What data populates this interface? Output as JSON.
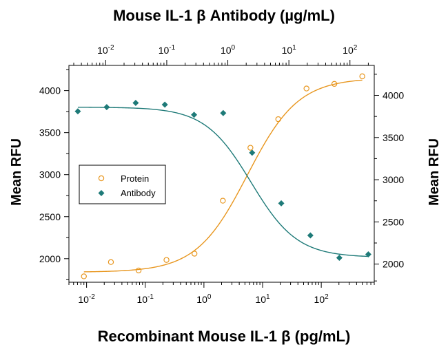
{
  "chart_data": {
    "type": "scatter",
    "title_top": "Mouse IL-1 β Antibody (µg/mL)",
    "xlabel": "Recombinant Mouse IL-1 β (pg/mL)",
    "ylabel_left": "Mean RFU",
    "ylabel_right": "Mean RFU",
    "x_bottom": {
      "scale": "log",
      "range": [
        0.005,
        800
      ],
      "ticks": [
        {
          "value": 0.01,
          "base": "10",
          "exp": "-2"
        },
        {
          "value": 0.1,
          "base": "10",
          "exp": "-1"
        },
        {
          "value": 1,
          "base": "10",
          "exp": "0"
        },
        {
          "value": 10,
          "base": "10",
          "exp": "1"
        },
        {
          "value": 100,
          "base": "10",
          "exp": "2"
        }
      ]
    },
    "x_top": {
      "scale": "log",
      "range": [
        0.0025,
        250
      ],
      "ticks": [
        {
          "value": 0.01,
          "base": "10",
          "exp": "-2"
        },
        {
          "value": 0.1,
          "base": "10",
          "exp": "-1"
        },
        {
          "value": 1,
          "base": "10",
          "exp": "0"
        },
        {
          "value": 10,
          "base": "10",
          "exp": "1"
        },
        {
          "value": 100,
          "base": "10",
          "exp": "2"
        }
      ]
    },
    "y_left": {
      "range": [
        1720,
        4300
      ],
      "ticks": [
        2000,
        2500,
        3000,
        3500,
        4000
      ]
    },
    "y_right": {
      "range": [
        1785,
        4355
      ],
      "ticks": [
        2000,
        2500,
        3000,
        3500,
        4000
      ]
    },
    "legend_position": "middle-left",
    "series": [
      {
        "name": "Protein",
        "axis": "bottom-left",
        "marker": "open-circle",
        "color": "#E8961E",
        "points": [
          {
            "x": 0.009,
            "y": 1790
          },
          {
            "x": 0.026,
            "y": 1960
          },
          {
            "x": 0.077,
            "y": 1860
          },
          {
            "x": 0.23,
            "y": 1985
          },
          {
            "x": 0.69,
            "y": 2060
          },
          {
            "x": 2.1,
            "y": 2690
          },
          {
            "x": 6.2,
            "y": 3320
          },
          {
            "x": 18.5,
            "y": 3660
          },
          {
            "x": 56,
            "y": 4025
          },
          {
            "x": 167,
            "y": 4080
          },
          {
            "x": 500,
            "y": 4170
          }
        ],
        "fit": {
          "bottom": 1840,
          "top": 4150,
          "ec50": 5.5,
          "hill": 1.0
        }
      },
      {
        "name": "Antibody",
        "axis": "top-right",
        "marker": "filled-diamond",
        "color": "#1E7A78",
        "points": [
          {
            "x": 0.0035,
            "y": 3810
          },
          {
            "x": 0.0104,
            "y": 3860
          },
          {
            "x": 0.031,
            "y": 3910
          },
          {
            "x": 0.093,
            "y": 3890
          },
          {
            "x": 0.28,
            "y": 3770
          },
          {
            "x": 0.84,
            "y": 3790
          },
          {
            "x": 2.5,
            "y": 3320
          },
          {
            "x": 7.5,
            "y": 2720
          },
          {
            "x": 22.5,
            "y": 2340
          },
          {
            "x": 67,
            "y": 2075
          },
          {
            "x": 200,
            "y": 2115
          }
        ],
        "fit": {
          "top": 3860,
          "bottom": 2080,
          "ec50": 2.4,
          "hill": 1.15
        }
      }
    ]
  }
}
